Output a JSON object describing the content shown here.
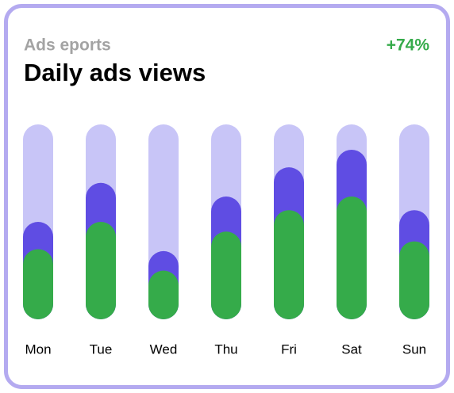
{
  "chart_data": {
    "type": "bar",
    "subtitle": "Ads eports",
    "title": "Daily ads views",
    "annotation": "+74%",
    "categories": [
      "Mon",
      "Tue",
      "Wed",
      "Thu",
      "Fri",
      "Sat",
      "Sun"
    ],
    "series": [
      {
        "color": "#5f4de3",
        "values": [
          50,
          70,
          35,
          63,
          78,
          87,
          56
        ]
      },
      {
        "color": "#35ab4a",
        "values": [
          36,
          50,
          25,
          45,
          56,
          63,
          40
        ]
      }
    ],
    "track_color": "#c8c5f7",
    "ylim": [
      0,
      100
    ]
  }
}
